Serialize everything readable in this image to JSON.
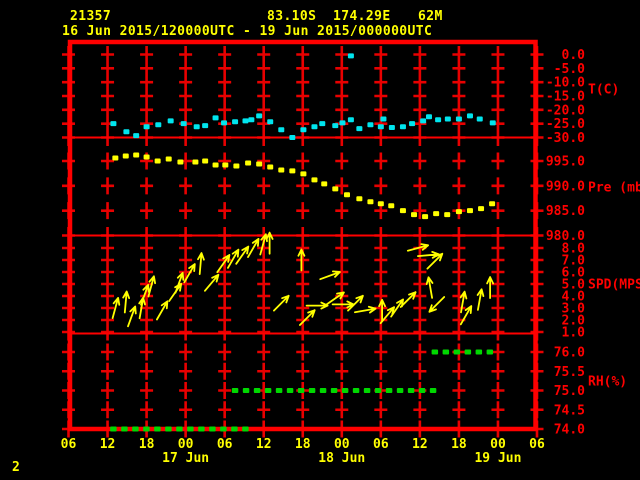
{
  "header": {
    "station_id": "21357",
    "latitude": "83.10S",
    "longitude": "174.29E",
    "elevation": "62M",
    "time_range": "16 Jun 2015/120000UTC - 19 Jun 2015/000000UTC"
  },
  "page_number": "2",
  "colors": {
    "background": "#000000",
    "frame": "#ff0000",
    "grid": "#e80000",
    "axis_labels": "#ff0000",
    "title_text": "#ffff00",
    "temperature": "#00e5ee",
    "pressure": "#ffff00",
    "wind": "#ffff00",
    "humidity": "#00d800"
  },
  "chart_data": {
    "type": "scatter",
    "x_axis": {
      "hours_span": 72,
      "tick_interval_hours": 6,
      "tick_labels": [
        "06",
        "12",
        "18",
        "00",
        "06",
        "12",
        "18",
        "00",
        "06",
        "12",
        "18",
        "00",
        "06"
      ],
      "day_labels": [
        {
          "label": "17 Jun",
          "hour": 18
        },
        {
          "label": "18 Jun",
          "hour": 42
        },
        {
          "label": "19 Jun",
          "hour": 66
        }
      ]
    },
    "panels": [
      {
        "name": "temperature",
        "unit_label": "T(C)",
        "tick_labels": [
          "0.0",
          "-5.0",
          "-10.0",
          "-15.0",
          "-20.0",
          "-25.0",
          "-30.0"
        ],
        "tick_values": [
          0,
          -5,
          -10,
          -15,
          -20,
          -25,
          -30
        ],
        "points": [
          [
            6.9,
            -25.0
          ],
          [
            8.9,
            -27.9
          ],
          [
            10.4,
            -29.3
          ],
          [
            12.0,
            -26.1
          ],
          [
            13.8,
            -25.4
          ],
          [
            15.7,
            -24.0
          ],
          [
            17.7,
            -25.0
          ],
          [
            19.7,
            -26.1
          ],
          [
            21.0,
            -25.7
          ],
          [
            22.6,
            -22.9
          ],
          [
            23.9,
            -24.7
          ],
          [
            25.6,
            -24.3
          ],
          [
            27.2,
            -24.0
          ],
          [
            28.1,
            -23.6
          ],
          [
            29.3,
            -22.2
          ],
          [
            31.0,
            -24.3
          ],
          [
            32.7,
            -27.2
          ],
          [
            34.4,
            -30.0
          ],
          [
            36.1,
            -27.2
          ],
          [
            37.8,
            -26.1
          ],
          [
            39.0,
            -25.0
          ],
          [
            41.0,
            -25.7
          ],
          [
            42.1,
            -24.7
          ],
          [
            43.4,
            -23.6
          ],
          [
            44.7,
            -26.8
          ],
          [
            46.4,
            -25.4
          ],
          [
            48.0,
            -26.1
          ],
          [
            48.4,
            -23.3
          ],
          [
            49.7,
            -26.4
          ],
          [
            51.4,
            -26.1
          ],
          [
            52.8,
            -25.0
          ],
          [
            54.5,
            -24.0
          ],
          [
            55.4,
            -22.5
          ],
          [
            56.8,
            -23.6
          ],
          [
            58.3,
            -23.3
          ],
          [
            60.0,
            -23.3
          ],
          [
            61.7,
            -22.2
          ],
          [
            63.2,
            -23.3
          ],
          [
            65.2,
            -24.7
          ],
          [
            43.4,
            -0.5
          ]
        ]
      },
      {
        "name": "pressure",
        "unit_label": "Pre (mb)",
        "tick_labels": [
          "995.0",
          "990.0",
          "985.0",
          "980.0"
        ],
        "tick_values": [
          995,
          990,
          985,
          980
        ],
        "points": [
          [
            7.2,
            995.6
          ],
          [
            8.8,
            996.0
          ],
          [
            10.4,
            996.2
          ],
          [
            12.0,
            995.8
          ],
          [
            13.7,
            995.0
          ],
          [
            15.4,
            995.4
          ],
          [
            17.2,
            994.8
          ],
          [
            19.5,
            994.8
          ],
          [
            21.0,
            995.0
          ],
          [
            22.6,
            994.2
          ],
          [
            24.1,
            994.2
          ],
          [
            25.8,
            994.0
          ],
          [
            27.6,
            994.6
          ],
          [
            29.3,
            994.4
          ],
          [
            31.0,
            993.8
          ],
          [
            32.7,
            993.2
          ],
          [
            34.4,
            993.0
          ],
          [
            36.1,
            992.4
          ],
          [
            37.8,
            991.2
          ],
          [
            39.3,
            990.4
          ],
          [
            41.0,
            989.4
          ],
          [
            42.8,
            988.2
          ],
          [
            44.7,
            987.4
          ],
          [
            46.4,
            986.8
          ],
          [
            48.0,
            986.4
          ],
          [
            49.6,
            986.0
          ],
          [
            51.4,
            985.0
          ],
          [
            53.1,
            984.2
          ],
          [
            54.8,
            983.8
          ],
          [
            56.5,
            984.4
          ],
          [
            58.2,
            984.2
          ],
          [
            60.0,
            984.8
          ],
          [
            61.7,
            985.0
          ],
          [
            63.4,
            985.4
          ],
          [
            65.1,
            986.4
          ]
        ]
      },
      {
        "name": "wind_speed",
        "unit_label": "SPD(MPS)",
        "tick_labels": [
          "8.0",
          "7.0",
          "6.0",
          "5.0",
          "4.0",
          "3.0",
          "2.0",
          "1.0"
        ],
        "tick_values": [
          8,
          7,
          6,
          5,
          4,
          3,
          2,
          1
        ],
        "arrows": [
          [
            7.2,
            3.0,
            15
          ],
          [
            8.8,
            3.5,
            5
          ],
          [
            9.7,
            2.3,
            20
          ],
          [
            11.2,
            3.0,
            10
          ],
          [
            11.7,
            4.1,
            20
          ],
          [
            12.7,
            4.8,
            15
          ],
          [
            14.4,
            2.8,
            30
          ],
          [
            16.4,
            4.3,
            35
          ],
          [
            17.0,
            5.1,
            20
          ],
          [
            18.6,
            5.9,
            30
          ],
          [
            20.3,
            6.7,
            5
          ],
          [
            22.0,
            5.1,
            40
          ],
          [
            23.8,
            6.7,
            35
          ],
          [
            25.3,
            7.1,
            30
          ],
          [
            26.7,
            7.4,
            35
          ],
          [
            28.4,
            8.0,
            30
          ],
          [
            29.9,
            8.3,
            15
          ],
          [
            30.9,
            8.4,
            0
          ],
          [
            32.7,
            3.4,
            45
          ],
          [
            35.8,
            7.0,
            0
          ],
          [
            36.7,
            2.2,
            45
          ],
          [
            38.2,
            3.2,
            90
          ],
          [
            40.2,
            5.7,
            70
          ],
          [
            41.0,
            3.8,
            55
          ],
          [
            42.2,
            3.3,
            90
          ],
          [
            44.1,
            3.4,
            45
          ],
          [
            45.6,
            2.8,
            80
          ],
          [
            48.2,
            2.8,
            0
          ],
          [
            49.0,
            2.4,
            40
          ],
          [
            50.5,
            3.0,
            35
          ],
          [
            52.2,
            3.7,
            45
          ],
          [
            53.7,
            8.0,
            75
          ],
          [
            55.3,
            7.4,
            85
          ],
          [
            56.3,
            6.9,
            45
          ],
          [
            55.6,
            4.7,
            -10
          ],
          [
            56.6,
            3.3,
            225
          ],
          [
            60.6,
            3.5,
            10
          ],
          [
            61.1,
            2.4,
            30
          ],
          [
            63.2,
            3.7,
            10
          ],
          [
            64.8,
            4.7,
            0
          ]
        ]
      },
      {
        "name": "relative_humidity",
        "unit_label": "RH(%)",
        "tick_labels": [
          "76.0",
          "75.5",
          "75.0",
          "74.5",
          "74.0"
        ],
        "tick_values": [
          76,
          75.5,
          75,
          74.5,
          74
        ],
        "segments": [
          {
            "value": 74.0,
            "hour_start": 6.9,
            "hour_end": 28.7
          },
          {
            "value": 75.0,
            "hour_start": 25.6,
            "hour_end": 57.1
          },
          {
            "value": 76.0,
            "hour_start": 56.3,
            "hour_end": 65.9
          }
        ]
      }
    ]
  }
}
